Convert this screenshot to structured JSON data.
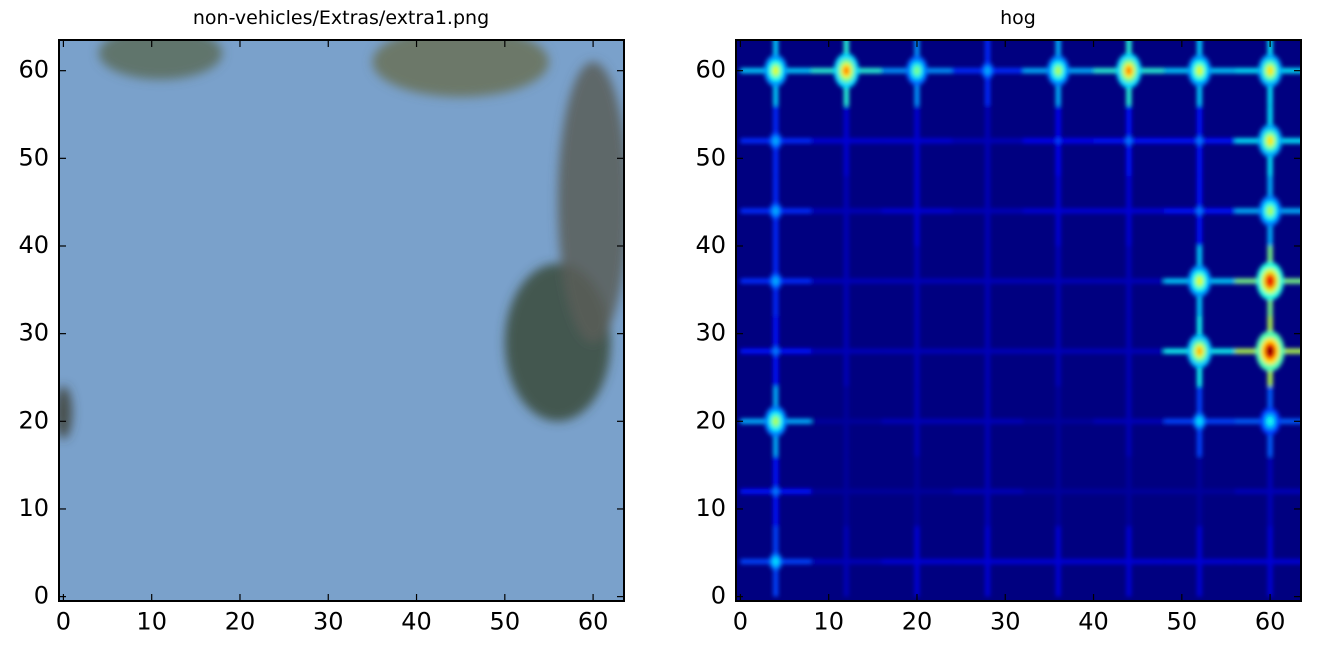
{
  "chart_data": [
    {
      "type": "heatmap",
      "title": "non-vehicles/Extras/extra1.png",
      "xlim": [
        -0.5,
        63.5
      ],
      "ylim": [
        63.5,
        -0.5
      ],
      "xticks": [
        0,
        10,
        20,
        30,
        40,
        50,
        60
      ],
      "yticks": [
        0,
        10,
        20,
        30,
        40,
        50,
        60
      ],
      "tick_labels": [
        "0",
        "10",
        "20",
        "30",
        "40",
        "50",
        "60"
      ],
      "grid": false,
      "image": {
        "size": [
          64,
          64
        ],
        "background_color": "#7aa1cb",
        "content": "photo: blue sky, foliage on right edge and along bottom",
        "foliage": [
          {
            "x": 56,
            "y": 29,
            "rx": 6,
            "ry": 9,
            "color": "#3a4a3a"
          },
          {
            "x": 60,
            "y": 45,
            "rx": 4,
            "ry": 16,
            "color": "#5a5e58"
          },
          {
            "x": 11,
            "y": 62,
            "rx": 7,
            "ry": 3,
            "color": "#5c6c5c"
          },
          {
            "x": 45,
            "y": 61,
            "rx": 10,
            "ry": 4,
            "color": "#6a7258"
          },
          {
            "x": 0,
            "y": 21,
            "rx": 1,
            "ry": 3,
            "color": "#404238"
          }
        ]
      }
    },
    {
      "type": "heatmap",
      "title": "hog",
      "xlim": [
        -0.5,
        63.5
      ],
      "ylim": [
        63.5,
        -0.5
      ],
      "xticks": [
        0,
        10,
        20,
        30,
        40,
        50,
        60
      ],
      "yticks": [
        0,
        10,
        20,
        30,
        40,
        50,
        60
      ],
      "tick_labels": [
        "0",
        "10",
        "20",
        "30",
        "40",
        "50",
        "60"
      ],
      "grid": false,
      "colormap": "jet",
      "cell_size": 8,
      "cell_centers": [
        4,
        12,
        20,
        28,
        36,
        44,
        52,
        60
      ],
      "cell_intensity": [
        [
          0.35,
          0.1,
          0.15,
          0.15,
          0.15,
          0.15,
          0.15,
          0.15
        ],
        [
          0.25,
          0.05,
          0.05,
          0.1,
          0.05,
          0.05,
          0.05,
          0.1
        ],
        [
          0.55,
          0.05,
          0.1,
          0.1,
          0.05,
          0.1,
          0.35,
          0.4
        ],
        [
          0.25,
          0.1,
          0.1,
          0.1,
          0.1,
          0.1,
          0.7,
          1.0
        ],
        [
          0.3,
          0.1,
          0.1,
          0.1,
          0.1,
          0.1,
          0.6,
          0.9
        ],
        [
          0.3,
          0.1,
          0.15,
          0.1,
          0.15,
          0.15,
          0.25,
          0.55
        ],
        [
          0.3,
          0.15,
          0.15,
          0.1,
          0.2,
          0.25,
          0.25,
          0.65
        ],
        [
          0.6,
          0.75,
          0.5,
          0.3,
          0.55,
          0.75,
          0.6,
          0.65
        ]
      ]
    }
  ]
}
